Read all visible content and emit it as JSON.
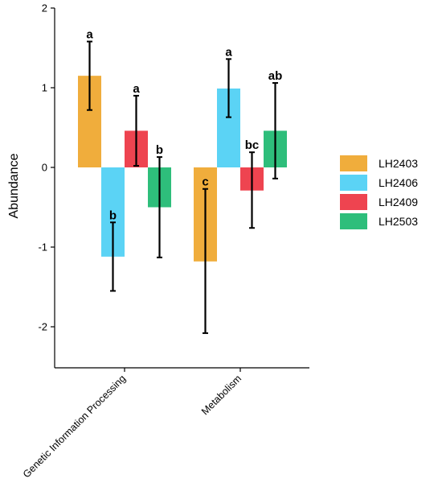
{
  "chart_data": {
    "type": "bar",
    "ylabel": "Abundance",
    "xlabel": "",
    "ylim": [
      -2.5,
      2
    ],
    "yticks": [
      -2,
      -1,
      0,
      1,
      2
    ],
    "grid": false,
    "legend_position": "right",
    "categories": [
      "Genetic Information Processing",
      "Metabolism"
    ],
    "series": [
      {
        "name": "LH2403",
        "color": "#F0AD3C",
        "values": [
          1.15,
          -1.18
        ],
        "error_low": [
          0.72,
          -2.08
        ],
        "error_high": [
          1.58,
          -0.27
        ],
        "labels": [
          "a",
          "c"
        ]
      },
      {
        "name": "LH2406",
        "color": "#5BD3F5",
        "values": [
          -1.12,
          0.99
        ],
        "error_low": [
          -1.55,
          0.63
        ],
        "error_high": [
          -0.69,
          1.36
        ],
        "labels": [
          "b",
          "a"
        ]
      },
      {
        "name": "LH2409",
        "color": "#EE4450",
        "values": [
          0.46,
          -0.29
        ],
        "error_low": [
          0.02,
          -0.76
        ],
        "error_high": [
          0.9,
          0.19
        ],
        "labels": [
          "a",
          "bc"
        ]
      },
      {
        "name": "LH2503",
        "color": "#2EBE7B",
        "values": [
          -0.5,
          0.46
        ],
        "error_low": [
          -1.13,
          -0.14
        ],
        "error_high": [
          0.13,
          1.06
        ],
        "labels": [
          "b",
          "ab"
        ]
      }
    ]
  }
}
